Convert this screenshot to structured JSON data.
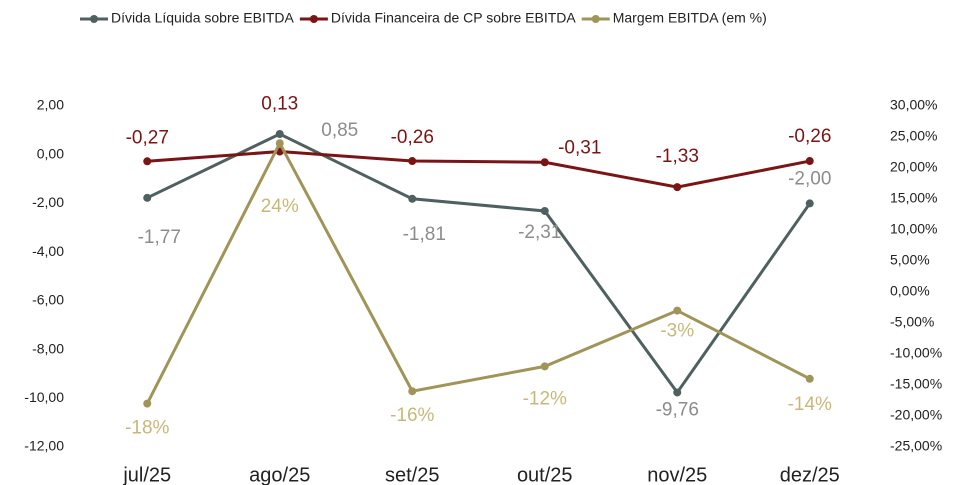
{
  "chart_data": {
    "type": "line",
    "categories": [
      "jul/25",
      "ago/25",
      "set/25",
      "out/25",
      "nov/25",
      "dez/25"
    ],
    "series": [
      {
        "name": "Dívida Líquida sobre EBITDA",
        "color": "#4f6060",
        "values": [
          -1.77,
          0.85,
          -1.81,
          -2.31,
          -9.76,
          -2.0
        ],
        "value_labels": [
          "-1,77",
          "0,85",
          "-1,81",
          "-2,31",
          "-9,76",
          "-2,00"
        ]
      },
      {
        "name": "Dívida Financeira de CP sobre EBITDA",
        "color": "#7b1414",
        "values": [
          -0.27,
          0.13,
          -0.26,
          -0.31,
          -1.33,
          -0.26
        ],
        "value_labels": [
          "-0,27",
          "0,13",
          "-0,26",
          "-0,31",
          "-1,33",
          "-0,26"
        ]
      },
      {
        "name": "Margem EBITDA (em %)",
        "color": "#a09458",
        "axis": "y2",
        "values": [
          -18,
          24,
          -16,
          -12,
          -3,
          -14
        ],
        "value_labels": [
          "-18%",
          "24%",
          "-16%",
          "-12%",
          "-3%",
          "-14%"
        ]
      }
    ],
    "ylim": [
      -12,
      2
    ],
    "yticks": [
      {
        "value": -12,
        "label": "-12,00"
      },
      {
        "value": -10,
        "label": "-10,00"
      },
      {
        "value": -8,
        "label": "-8,00"
      },
      {
        "value": -6,
        "label": "-6,00"
      },
      {
        "value": -4,
        "label": "-4,00"
      },
      {
        "value": -2,
        "label": "-2,00"
      },
      {
        "value": 0,
        "label": "0,00"
      },
      {
        "value": 2,
        "label": "2,00"
      }
    ],
    "y2lim": [
      -25,
      30
    ],
    "y2ticks": [
      {
        "value": -25,
        "label": "-25,00%"
      },
      {
        "value": -20,
        "label": "-20,00%"
      },
      {
        "value": -15,
        "label": "-15,00%"
      },
      {
        "value": -10,
        "label": "-10,00%"
      },
      {
        "value": -5,
        "label": "-5,00%"
      },
      {
        "value": 0,
        "label": "0,00%"
      },
      {
        "value": 5,
        "label": "5,00%"
      },
      {
        "value": 10,
        "label": "10,00%"
      },
      {
        "value": 15,
        "label": "15,00%"
      },
      {
        "value": 20,
        "label": "20,00%"
      },
      {
        "value": 25,
        "label": "25,00%"
      },
      {
        "value": 30,
        "label": "30,00%"
      }
    ],
    "grid": false,
    "legend": "top"
  }
}
